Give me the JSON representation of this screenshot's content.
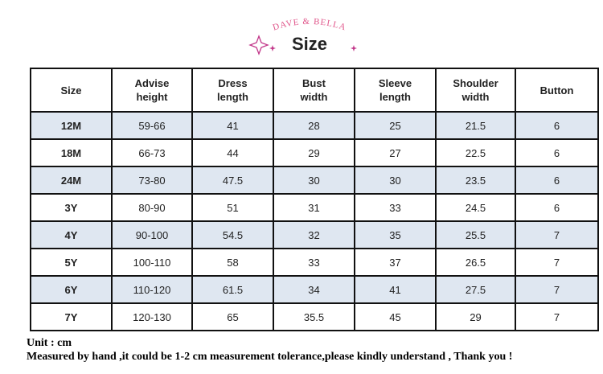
{
  "header": {
    "brand": "DAVE & BELLA",
    "title": "Size"
  },
  "table": {
    "columns": [
      "Size",
      "Advise\nheight",
      "Dress\nlength",
      "Bust\nwidth",
      "Sleeve\nlength",
      "Shoulder\nwidth",
      "Button"
    ],
    "rows": [
      [
        "12M",
        "59-66",
        "41",
        "28",
        "25",
        "21.5",
        "6"
      ],
      [
        "18M",
        "66-73",
        "44",
        "29",
        "27",
        "22.5",
        "6"
      ],
      [
        "24M",
        "73-80",
        "47.5",
        "30",
        "30",
        "23.5",
        "6"
      ],
      [
        "3Y",
        "80-90",
        "51",
        "31",
        "33",
        "24.5",
        "6"
      ],
      [
        "4Y",
        "90-100",
        "54.5",
        "32",
        "35",
        "25.5",
        "7"
      ],
      [
        "5Y",
        "100-110",
        "58",
        "33",
        "37",
        "26.5",
        "7"
      ],
      [
        "6Y",
        "110-120",
        "61.5",
        "34",
        "41",
        "27.5",
        "7"
      ],
      [
        "7Y",
        "120-130",
        "65",
        "35.5",
        "45",
        "29",
        "7"
      ]
    ]
  },
  "footer": {
    "unit": "Unit : cm",
    "note": "Measured by hand ,it could be 1-2 cm measurement tolerance,please kindly understand , Thank you !"
  }
}
